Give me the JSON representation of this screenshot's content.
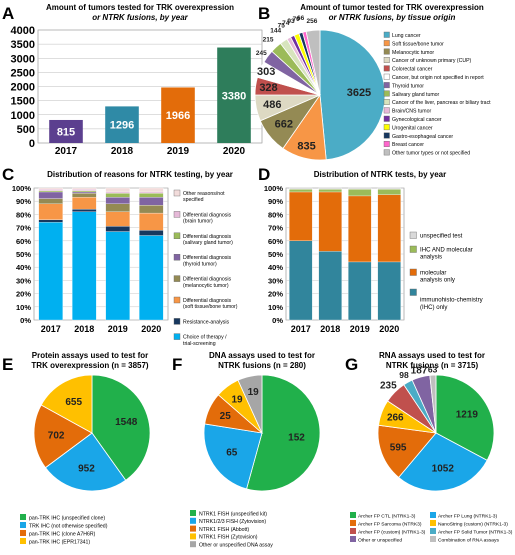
{
  "panels": {
    "A": {
      "letter": "A",
      "title_1": "Amount of tumors tested for TRK overexpression",
      "title_2": "or NTRK fusions, by year"
    },
    "B": {
      "letter": "B",
      "title_1": "Amount of tumor tested for TRK overexpression",
      "title_2": "or NTRK fusions, by tissue origin"
    },
    "C": {
      "letter": "C",
      "title_1": "Distribution of reasons for NTRK testing, by year",
      "title_2": ""
    },
    "D": {
      "letter": "D",
      "title_1": "Distribution of NTRK tests, by year",
      "title_2": ""
    },
    "E": {
      "letter": "E",
      "title_1": "Protein assays used to test for",
      "title_2": "TRK overexpression (n = 3857)"
    },
    "F": {
      "letter": "F",
      "title_1": "DNA assays used to test for",
      "title_2": "NTRK fusions (n = 280)"
    },
    "G": {
      "letter": "G",
      "title_1": "RNA assays used to test for",
      "title_2": "NTRK fusions (n = 3715)"
    }
  },
  "chart_data": [
    {
      "id": "A",
      "type": "bar",
      "categories": [
        "2017",
        "2018",
        "2019",
        "2020"
      ],
      "values": [
        815,
        1296,
        1966,
        3380
      ],
      "colors": [
        "#5b3f8f",
        "#2f8aa6",
        "#e36c0a",
        "#2e7d5b"
      ],
      "ylim": [
        0,
        4000
      ],
      "yticks": [
        "0",
        "500",
        "1000",
        "1500",
        "2000",
        "2500",
        "3000",
        "3500",
        "4000"
      ],
      "grid": true
    },
    {
      "id": "B",
      "type": "pie",
      "labels": [
        "Lung cancer",
        "Soft tissue/bone tumor",
        "Melanocytic tumor",
        "Cancer of unknown primary (CUP)",
        "Colorectal cancer",
        "Cancer, but origin not specified in report",
        "Thyroid tumor",
        "Salivary gland tumor",
        "Cancer of the liver, pancreas or biliary tract",
        "Brain/CNS tumor",
        "Gynecological cancer",
        "Urogenital cancer",
        "Gastro-esophageal cancer",
        "Breast cancer",
        "Other tumor types or not specified"
      ],
      "values": [
        3625,
        835,
        662,
        486,
        328,
        303,
        245,
        215,
        144,
        75,
        74,
        93,
        70,
        66,
        256
      ],
      "colors": [
        "#4bacc6",
        "#f79646",
        "#948a54",
        "#ddd9c3",
        "#c0504d",
        "#ffffff",
        "#8064a2",
        "#9bbb59",
        "#d7e4bd",
        "#e6b9d8",
        "#7030a0",
        "#ffff00",
        "#17375e",
        "#ff66cc",
        "#bfbfbf"
      ],
      "label_values": [
        "3625",
        "835",
        "662",
        "486",
        "328",
        "303",
        "245",
        "215",
        "144",
        "75",
        "74",
        "93",
        "70",
        "66",
        "256"
      ]
    },
    {
      "id": "C",
      "type": "bar",
      "stacked": true,
      "categories": [
        "2017",
        "2018",
        "2019",
        "2020"
      ],
      "series": [
        {
          "name": "Choice of therapy / trial-screening",
          "values": [
            74,
            82,
            67,
            64
          ],
          "color": "#00b0f0"
        },
        {
          "name": "Resistance-analysis",
          "values": [
            2,
            2,
            4,
            4
          ],
          "color": "#17375e"
        },
        {
          "name": "Differential diagnosis (soft tissue/bone tumor)",
          "values": [
            12,
            9,
            11,
            13
          ],
          "color": "#f79646"
        },
        {
          "name": "Differential diagnosis (melanocytic tumor)",
          "values": [
            4,
            3,
            6,
            6
          ],
          "color": "#948a54"
        },
        {
          "name": "Differential diagnosis (thyroid tumor)",
          "values": [
            5,
            1,
            5,
            6
          ],
          "color": "#8064a2"
        },
        {
          "name": "Differential diagnosis (salivary gland tumor)",
          "values": [
            1,
            1,
            3,
            3
          ],
          "color": "#9bbb59"
        },
        {
          "name": "Differential diagnosis (brain tumor)",
          "values": [
            1,
            1,
            1,
            1
          ],
          "color": "#e6b9d8"
        },
        {
          "name": "Other reasons/not specified",
          "values": [
            1,
            1,
            3,
            3
          ],
          "color": "#f2dcdb"
        }
      ],
      "ylim": [
        0,
        100
      ],
      "yticks": [
        "0%",
        "10%",
        "20%",
        "30%",
        "40%",
        "50%",
        "60%",
        "70%",
        "80%",
        "90%",
        "100%"
      ]
    },
    {
      "id": "D",
      "type": "bar",
      "stacked": true,
      "categories": [
        "2017",
        "2018",
        "2019",
        "2020"
      ],
      "series": [
        {
          "name": "immunohisto-chemistry (IHC) only",
          "values": [
            60,
            52,
            44,
            44
          ],
          "color": "#31859c"
        },
        {
          "name": "molecular analysis only",
          "values": [
            37,
            45,
            50,
            51
          ],
          "color": "#e36c0a"
        },
        {
          "name": "IHC AND molecular analysis",
          "values": [
            2,
            2,
            5,
            4
          ],
          "color": "#9bbb59"
        },
        {
          "name": "unspecified test",
          "values": [
            1,
            1,
            1,
            1
          ],
          "color": "#d9d9d9"
        }
      ],
      "ylim": [
        0,
        100
      ],
      "yticks": [
        "0%",
        "10%",
        "20%",
        "30%",
        "40%",
        "50%",
        "60%",
        "70%",
        "80%",
        "90%",
        "100%"
      ]
    },
    {
      "id": "E",
      "type": "pie",
      "labels": [
        "pan-TRK IHC (unspecified clone)",
        "TRK IHC (not otherwise specified)",
        "pan-TRK IHC (clone A7H6R)",
        "pan-TRK IHC (EPR17341)"
      ],
      "values": [
        1548,
        952,
        702,
        655
      ],
      "colors": [
        "#21b04b",
        "#1aa6e8",
        "#e36c0a",
        "#ffc000"
      ],
      "label_values": [
        "1548",
        "952",
        "702",
        "655"
      ]
    },
    {
      "id": "F",
      "type": "pie",
      "labels": [
        "NTRK1 FISH (unspecified kit)",
        "NTRK1/2/3 FISH (Zytovision)",
        "NTRK1 FISH (Abbott)",
        "NTRK1 FISH (Zytovision)",
        "Other or unspecified DNA assay"
      ],
      "values": [
        152,
        65,
        25,
        19,
        19
      ],
      "colors": [
        "#21b04b",
        "#1aa6e8",
        "#e36c0a",
        "#ffc000",
        "#a6a6a6"
      ],
      "label_values": [
        "152",
        "65",
        "25",
        "19",
        "19"
      ]
    },
    {
      "id": "G",
      "type": "pie",
      "labels": [
        "Archer FP CTL (NTRK1-3)",
        "Archer FP Lung (NTRK1-3)",
        "Archer FP Sarcoma (NTRK3)",
        "NanoString (custom) (NTRK1-3)",
        "Archer FP (custom) (NTRK1-3)",
        "Archer FP Solid Tumor (NTRK1-3)",
        "Other or unspecified",
        "Combination of RNA assays"
      ],
      "values": [
        1219,
        1052,
        595,
        266,
        235,
        98,
        187,
        63
      ],
      "colors": [
        "#21b04b",
        "#1aa6e8",
        "#e36c0a",
        "#ffc000",
        "#c0504d",
        "#4bacc6",
        "#8064a2",
        "#bfbfbf"
      ],
      "label_values": [
        "1219",
        "1052",
        "595",
        "266",
        "235",
        "98",
        "187",
        "63"
      ]
    }
  ]
}
